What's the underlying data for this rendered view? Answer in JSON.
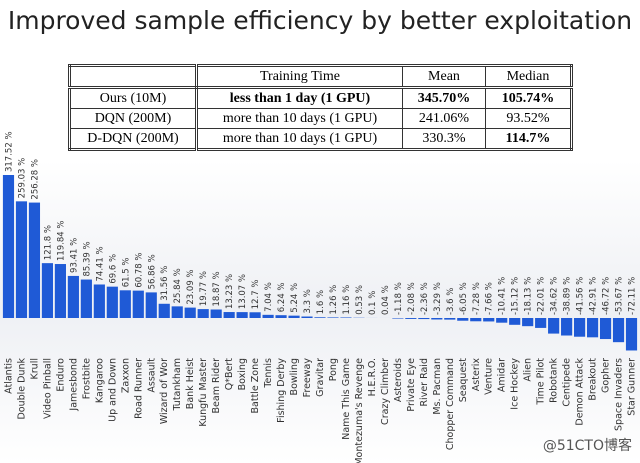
{
  "title": "Improved sample efficiency by better exploitation",
  "table": {
    "header": [
      "",
      "Training Time",
      "Mean",
      "Median"
    ],
    "rows": [
      [
        "Ours (10M)",
        "less than 1 day (1 GPU)",
        "345.70%",
        "105.74%"
      ],
      [
        "DQN (200M)",
        "more than 10 days (1 GPU)",
        "241.06%",
        "93.52%"
      ],
      [
        "D-DQN (200M)",
        "more than 10 days (1 GPU)",
        "330.3%",
        "114.7%"
      ]
    ]
  },
  "watermark": "@51CTO博客",
  "chart_data": {
    "type": "bar",
    "color": "#1f5ad6",
    "categories": [
      "Atlantis",
      "Double Dunk",
      "Krull",
      "Video Pinball",
      "Enduro",
      "Jamesbond",
      "Frostbite",
      "Kangaroo",
      "Up and Down",
      "Zaxxon",
      "Road Runner",
      "Assault",
      "Wizard of Wor",
      "Tutankham",
      "Bank Heist",
      "Kungfu Master",
      "Beam Rider",
      "Q*Bert",
      "Boxing",
      "Battle Zone",
      "Tennis",
      "Fishing Derby",
      "Bowling",
      "Freeway",
      "Gravitar",
      "Pong",
      "Name This Game",
      "Montezuma's Revenge",
      "H.E.R.O.",
      "Crazy Climber",
      "Asteroids",
      "Private Eye",
      "River Raid",
      "Ms. Pacman",
      "Chopper Command",
      "Seaquest",
      "Asterix",
      "Venture",
      "Amidar",
      "Ice Hockey",
      "Alien",
      "Time Pilot",
      "Robotank",
      "Centipede",
      "Demon Attack",
      "Breakout",
      "Gopher",
      "Space Invaders",
      "Star Gunner"
    ],
    "values": [
      317.52,
      259.03,
      256.28,
      121.8,
      119.84,
      93.41,
      85.39,
      74.41,
      69.6,
      61.5,
      60.78,
      56.86,
      31.56,
      25.84,
      23.09,
      19.77,
      18.87,
      13.23,
      13.07,
      12.7,
      7.04,
      6.24,
      5.24,
      3.3,
      1.6,
      1.26,
      1.16,
      0.53,
      0.1,
      0.04,
      -1.18,
      -2.08,
      -2.36,
      -3.29,
      -3.6,
      -6.05,
      -7.28,
      -7.66,
      -10.41,
      -15.12,
      -18.13,
      -22.01,
      -34.62,
      -38.89,
      -41.56,
      -42.91,
      -46.72,
      -53.67,
      -72.11
    ],
    "value_labels": [
      "317.52 %",
      "259.03 %",
      "256.28 %",
      "121.8 %",
      "119.84 %",
      "93.41 %",
      "85.39 %",
      "74.41 %",
      "69.6 %",
      "61.5 %",
      "60.78 %",
      "56.86 %",
      "31.56 %",
      "25.84 %",
      "23.09 %",
      "19.77 %",
      "18.87 %",
      "13.23 %",
      "13.07 %",
      "12.7 %",
      "7.04 %",
      "6.24 %",
      "5.24 %",
      "3.3 %",
      "1.6 %",
      "1.26 %",
      "1.16 %",
      "0.53 %",
      "0.1 %",
      "0.04 %",
      "-1.18 %",
      "-2.08 %",
      "-2.36 %",
      "-3.29 %",
      "-3.6 %",
      "-6.05 %",
      "-7.28 %",
      "-7.66 %",
      "-10.41 %",
      "-15.12 %",
      "-18.13 %",
      "-22.01 %",
      "-34.62 %",
      "-38.89 %",
      "-41.56 %",
      "-42.91 %",
      "-46.72 %",
      "-53.67 %",
      "-72.11 %"
    ]
  }
}
